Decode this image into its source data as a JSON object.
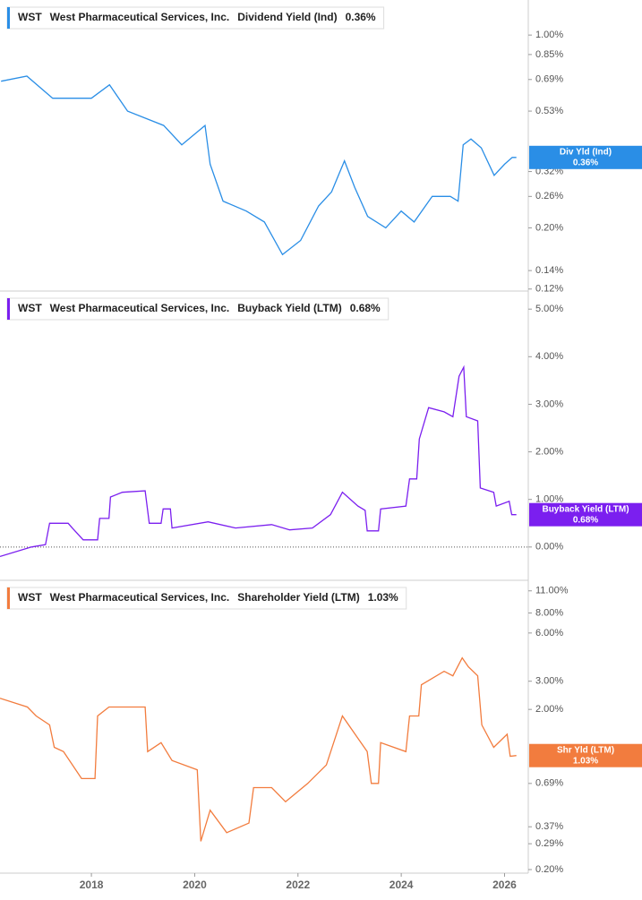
{
  "chart_data": [
    {
      "type": "line",
      "ticker": "WST",
      "company": "West Pharmaceutical Services, Inc.",
      "current": {
        "value": 0.36,
        "label": "0.36%"
      },
      "badge_label": "Div Yld (Ind)",
      "log_y": true,
      "xlim": [
        2016.23,
        2026.46
      ],
      "ylim": [
        0.118,
        1.34
      ],
      "yticks": [
        {
          "value": 1.0,
          "label": "1.00%"
        },
        {
          "value": 0.85,
          "label": "0.85%"
        },
        {
          "value": 0.69,
          "label": "0.69%"
        },
        {
          "value": 0.53,
          "label": "0.53%"
        },
        {
          "value": 0.32,
          "label": "0.32%"
        },
        {
          "value": 0.26,
          "label": "0.26%"
        },
        {
          "value": 0.2,
          "label": "0.20%"
        },
        {
          "value": 0.14,
          "label": "0.14%"
        },
        {
          "value": 0.12,
          "label": "0.12%"
        }
      ],
      "x": [
        2016.25,
        2016.75,
        2017.25,
        2018.0,
        2018.35,
        2018.7,
        2019.4,
        2019.75,
        2020.2,
        2020.3,
        2020.55,
        2021.0,
        2021.35,
        2021.7,
        2022.05,
        2022.4,
        2022.65,
        2022.9,
        2023.1,
        2023.35,
        2023.7,
        2024.0,
        2024.25,
        2024.6,
        2024.95,
        2025.1,
        2025.2,
        2025.35,
        2025.55,
        2025.8,
        2026.0,
        2026.15,
        2026.23
      ],
      "series": [
        {
          "name": "Dividend Yield (Ind)",
          "color": "#2a8ee6",
          "values": [
            0.68,
            0.71,
            0.59,
            0.59,
            0.66,
            0.53,
            0.47,
            0.4,
            0.47,
            0.34,
            0.25,
            0.23,
            0.21,
            0.16,
            0.18,
            0.24,
            0.27,
            0.35,
            0.28,
            0.22,
            0.2,
            0.23,
            0.21,
            0.26,
            0.26,
            0.25,
            0.4,
            0.42,
            0.39,
            0.31,
            0.34,
            0.36,
            0.36
          ]
        }
      ]
    },
    {
      "type": "line",
      "ticker": "WST",
      "company": "West Pharmaceutical Services, Inc.",
      "current": {
        "value": 0.68,
        "label": "0.68%"
      },
      "badge_label": "Buyback Yield (LTM)",
      "log_y": false,
      "zero_line": true,
      "xlim": [
        2016.23,
        2026.46
      ],
      "ylim": [
        -0.7,
        5.38
      ],
      "yticks": [
        {
          "value": 0,
          "label": "0.00%"
        },
        {
          "value": 1,
          "label": "1.00%"
        },
        {
          "value": 2,
          "label": "2.00%"
        },
        {
          "value": 3,
          "label": "3.00%"
        },
        {
          "value": 4,
          "label": "4.00%"
        },
        {
          "value": 5,
          "label": "5.00%"
        }
      ],
      "x": [
        2016.23,
        2016.84,
        2017.11,
        2017.19,
        2017.55,
        2017.63,
        2017.84,
        2018.12,
        2018.16,
        2018.34,
        2018.37,
        2018.6,
        2019.04,
        2019.12,
        2019.35,
        2019.39,
        2019.53,
        2019.56,
        2020.26,
        2020.79,
        2021.49,
        2021.84,
        2022.28,
        2022.63,
        2022.86,
        2023.16,
        2023.3,
        2023.34,
        2023.56,
        2023.6,
        2024.09,
        2024.16,
        2024.3,
        2024.35,
        2024.53,
        2024.83,
        2025.0,
        2025.12,
        2025.21,
        2025.26,
        2025.48,
        2025.53,
        2025.79,
        2025.84,
        2026.09,
        2026.14,
        2026.23
      ],
      "series": [
        {
          "name": "Buyback Yield (LTM)",
          "color": "#7b1fef",
          "values": [
            -0.2,
            0,
            0.05,
            0.5,
            0.5,
            0.4,
            0.15,
            0.15,
            0.6,
            0.6,
            1.05,
            1.15,
            1.18,
            0.5,
            0.5,
            0.8,
            0.8,
            0.4,
            0.53,
            0.4,
            0.47,
            0.36,
            0.4,
            0.68,
            1.15,
            0.86,
            0.77,
            0.34,
            0.34,
            0.8,
            0.86,
            1.43,
            1.43,
            2.27,
            2.93,
            2.84,
            2.74,
            3.59,
            3.78,
            2.74,
            2.65,
            1.24,
            1.15,
            0.86,
            0.96,
            0.68,
            0.68
          ]
        }
      ]
    },
    {
      "type": "line",
      "ticker": "WST",
      "company": "West Pharmaceutical Services, Inc.",
      "current": {
        "value": 1.03,
        "label": "1.03%"
      },
      "badge_label": "Shr Yld (LTM)",
      "log_y": true,
      "xlim": [
        2016.23,
        2026.46
      ],
      "ylim": [
        0.19,
        12.8
      ],
      "xticks": [
        2018,
        2020,
        2022,
        2024,
        2026
      ],
      "yticks": [
        {
          "value": 11,
          "label": "11.00%"
        },
        {
          "value": 8,
          "label": "8.00%"
        },
        {
          "value": 6,
          "label": "6.00%"
        },
        {
          "value": 3,
          "label": "3.00%"
        },
        {
          "value": 2,
          "label": "2.00%"
        },
        {
          "value": 0.69,
          "label": "0.69%"
        },
        {
          "value": 0.37,
          "label": "0.37%"
        },
        {
          "value": 0.29,
          "label": "0.29%"
        },
        {
          "value": 0.2,
          "label": "0.20%"
        }
      ],
      "x": [
        2016.23,
        2016.76,
        2016.93,
        2017.19,
        2017.28,
        2017.46,
        2017.81,
        2018.07,
        2018.12,
        2018.34,
        2019.04,
        2019.09,
        2019.35,
        2019.56,
        2020.05,
        2020.12,
        2020.3,
        2020.62,
        2021.05,
        2021.14,
        2021.49,
        2021.76,
        2022.19,
        2022.55,
        2022.86,
        2023.16,
        2023.34,
        2023.42,
        2023.56,
        2023.6,
        2024.09,
        2024.16,
        2024.34,
        2024.39,
        2024.83,
        2025.0,
        2025.18,
        2025.3,
        2025.48,
        2025.56,
        2025.79,
        2026.05,
        2026.11,
        2026.23
      ],
      "series": [
        {
          "name": "Shareholder Yield (LTM)",
          "color": "#f27c3e",
          "values": [
            2.35,
            2.07,
            1.82,
            1.6,
            1.16,
            1.09,
            0.74,
            0.74,
            1.82,
            2.07,
            2.07,
            1.09,
            1.24,
            0.96,
            0.84,
            0.3,
            0.47,
            0.34,
            0.39,
            0.65,
            0.65,
            0.53,
            0.69,
            0.9,
            1.82,
            1.32,
            1.09,
            0.69,
            0.69,
            1.24,
            1.09,
            1.82,
            1.82,
            2.85,
            3.46,
            3.24,
            4.2,
            3.69,
            3.24,
            1.6,
            1.16,
            1.4,
            1.02,
            1.03
          ]
        }
      ]
    }
  ]
}
